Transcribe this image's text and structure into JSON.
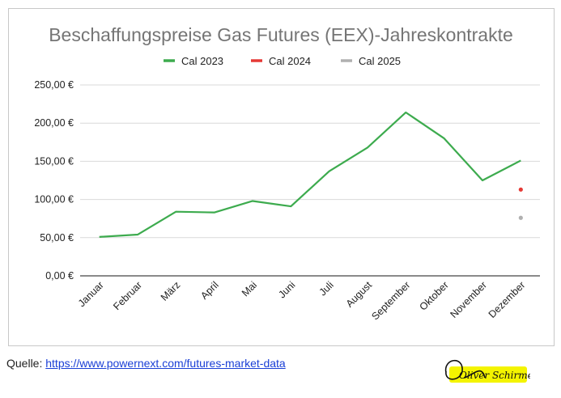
{
  "chart_data": {
    "type": "line",
    "title": "Beschaffungspreise Gas Futures (EEX)-Jahreskontrakte",
    "categories": [
      "Januar",
      "Februar",
      "März",
      "April",
      "Mai",
      "Juni",
      "Juli",
      "August",
      "September",
      "Oktober",
      "November",
      "Dezember"
    ],
    "series": [
      {
        "name": "Cal 2023",
        "color": "#3dab4e",
        "values": [
          51,
          54,
          84,
          83,
          98,
          91,
          137,
          168,
          214,
          180,
          125,
          151
        ]
      },
      {
        "name": "Cal 2024",
        "color": "#e53935",
        "values": [
          null,
          null,
          null,
          null,
          null,
          null,
          null,
          null,
          null,
          null,
          null,
          113
        ]
      },
      {
        "name": "Cal 2025",
        "color": "#b0b0b0",
        "values": [
          null,
          null,
          null,
          null,
          null,
          null,
          null,
          null,
          null,
          null,
          null,
          76
        ]
      }
    ],
    "ylim": [
      0,
      250
    ],
    "yticks": [
      0,
      50,
      100,
      150,
      200,
      250
    ],
    "ytick_labels": [
      "0,00 €",
      "50,00 €",
      "100,00 €",
      "150,00 €",
      "200,00 €",
      "250,00 €"
    ],
    "xlabel": "",
    "ylabel": "",
    "legend_position": "top",
    "grid": true
  },
  "source": {
    "label": "Quelle:",
    "url": "https://www.powernext.com/futures-market-data"
  },
  "signature": {
    "text": "Oliver Schirmer"
  }
}
